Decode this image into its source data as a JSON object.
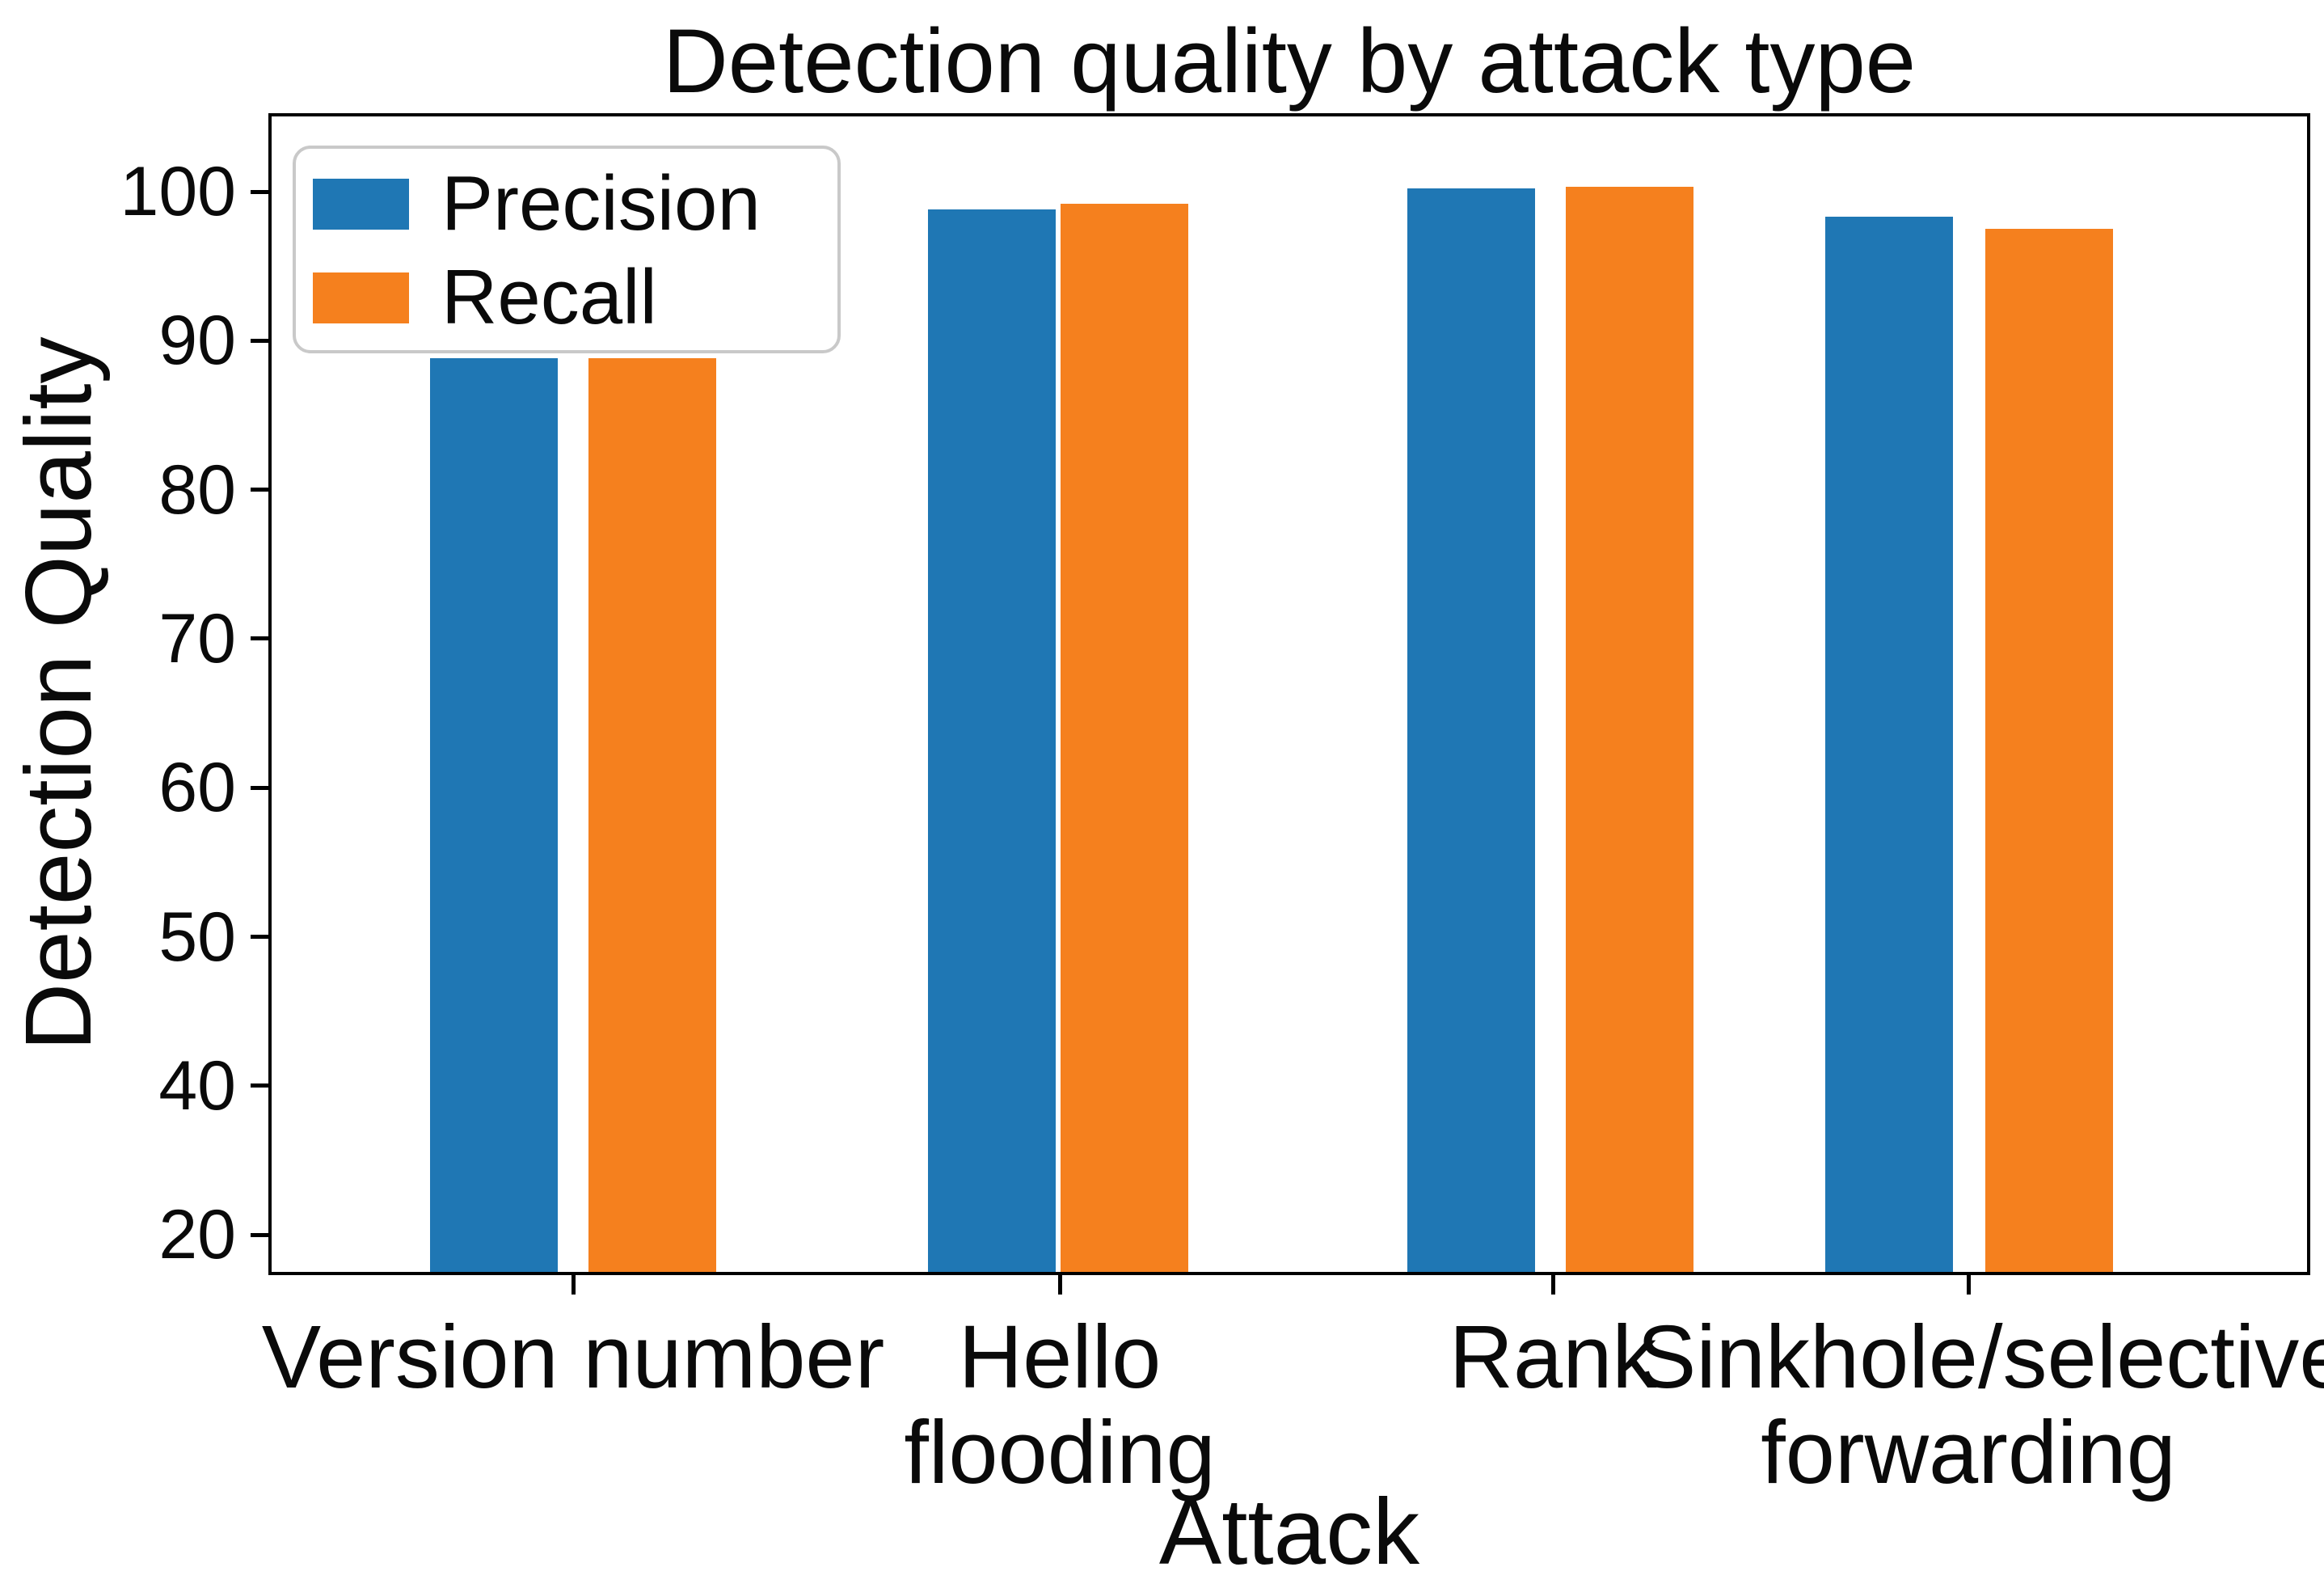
{
  "figure": {
    "title": "Detection quality by attack type",
    "xlabel": "Attack",
    "ylabel": "Detection Quality"
  },
  "legend": {
    "items": [
      "Precision",
      "Recall"
    ]
  },
  "chart_data": {
    "type": "bar",
    "title": "Detection quality by attack type",
    "xlabel": "Attack",
    "ylabel": "Detection Quality",
    "categories": [
      "Version number",
      "Hello\nflooding",
      "Rank",
      "Sinkhole/selective\nforwarding"
    ],
    "series": [
      {
        "name": "Precision",
        "color": "#1f77b4",
        "values": [
          88.8,
          98.8,
          100.2,
          98.3
        ]
      },
      {
        "name": "Recall",
        "color": "#f5801e",
        "values": [
          88.8,
          99.2,
          100.3,
          97.5
        ]
      }
    ],
    "ytick_labels": [
      "100",
      "90",
      "80",
      "70",
      "60",
      "50",
      "40",
      "20"
    ],
    "legend_position": "upper left",
    "grid": false
  }
}
